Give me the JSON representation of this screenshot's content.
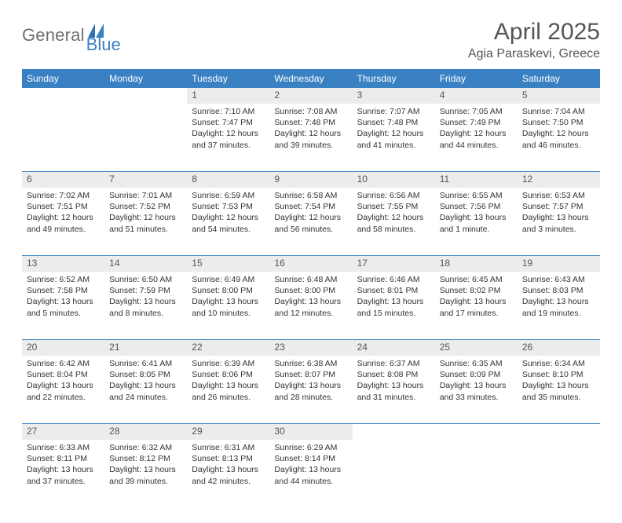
{
  "logo": {
    "text1": "General",
    "text2": "Blue"
  },
  "title": "April 2025",
  "location": "Agia Paraskevi, Greece",
  "colors": {
    "header_bg": "#3a81c4",
    "header_fg": "#ffffff",
    "daynum_bg": "#ececec",
    "rule": "#3a81c4",
    "logo_gray": "#6e6e6e",
    "logo_blue": "#3a81c4",
    "text": "#333333"
  },
  "weekdays": [
    "Sunday",
    "Monday",
    "Tuesday",
    "Wednesday",
    "Thursday",
    "Friday",
    "Saturday"
  ],
  "weeks": [
    [
      {
        "n": "",
        "empty": true
      },
      {
        "n": "",
        "empty": true
      },
      {
        "n": "1",
        "sr": "Sunrise: 7:10 AM",
        "ss": "Sunset: 7:47 PM",
        "dl": "Daylight: 12 hours and 37 minutes."
      },
      {
        "n": "2",
        "sr": "Sunrise: 7:08 AM",
        "ss": "Sunset: 7:48 PM",
        "dl": "Daylight: 12 hours and 39 minutes."
      },
      {
        "n": "3",
        "sr": "Sunrise: 7:07 AM",
        "ss": "Sunset: 7:48 PM",
        "dl": "Daylight: 12 hours and 41 minutes."
      },
      {
        "n": "4",
        "sr": "Sunrise: 7:05 AM",
        "ss": "Sunset: 7:49 PM",
        "dl": "Daylight: 12 hours and 44 minutes."
      },
      {
        "n": "5",
        "sr": "Sunrise: 7:04 AM",
        "ss": "Sunset: 7:50 PM",
        "dl": "Daylight: 12 hours and 46 minutes."
      }
    ],
    [
      {
        "n": "6",
        "sr": "Sunrise: 7:02 AM",
        "ss": "Sunset: 7:51 PM",
        "dl": "Daylight: 12 hours and 49 minutes."
      },
      {
        "n": "7",
        "sr": "Sunrise: 7:01 AM",
        "ss": "Sunset: 7:52 PM",
        "dl": "Daylight: 12 hours and 51 minutes."
      },
      {
        "n": "8",
        "sr": "Sunrise: 6:59 AM",
        "ss": "Sunset: 7:53 PM",
        "dl": "Daylight: 12 hours and 54 minutes."
      },
      {
        "n": "9",
        "sr": "Sunrise: 6:58 AM",
        "ss": "Sunset: 7:54 PM",
        "dl": "Daylight: 12 hours and 56 minutes."
      },
      {
        "n": "10",
        "sr": "Sunrise: 6:56 AM",
        "ss": "Sunset: 7:55 PM",
        "dl": "Daylight: 12 hours and 58 minutes."
      },
      {
        "n": "11",
        "sr": "Sunrise: 6:55 AM",
        "ss": "Sunset: 7:56 PM",
        "dl": "Daylight: 13 hours and 1 minute."
      },
      {
        "n": "12",
        "sr": "Sunrise: 6:53 AM",
        "ss": "Sunset: 7:57 PM",
        "dl": "Daylight: 13 hours and 3 minutes."
      }
    ],
    [
      {
        "n": "13",
        "sr": "Sunrise: 6:52 AM",
        "ss": "Sunset: 7:58 PM",
        "dl": "Daylight: 13 hours and 5 minutes."
      },
      {
        "n": "14",
        "sr": "Sunrise: 6:50 AM",
        "ss": "Sunset: 7:59 PM",
        "dl": "Daylight: 13 hours and 8 minutes."
      },
      {
        "n": "15",
        "sr": "Sunrise: 6:49 AM",
        "ss": "Sunset: 8:00 PM",
        "dl": "Daylight: 13 hours and 10 minutes."
      },
      {
        "n": "16",
        "sr": "Sunrise: 6:48 AM",
        "ss": "Sunset: 8:00 PM",
        "dl": "Daylight: 13 hours and 12 minutes."
      },
      {
        "n": "17",
        "sr": "Sunrise: 6:46 AM",
        "ss": "Sunset: 8:01 PM",
        "dl": "Daylight: 13 hours and 15 minutes."
      },
      {
        "n": "18",
        "sr": "Sunrise: 6:45 AM",
        "ss": "Sunset: 8:02 PM",
        "dl": "Daylight: 13 hours and 17 minutes."
      },
      {
        "n": "19",
        "sr": "Sunrise: 6:43 AM",
        "ss": "Sunset: 8:03 PM",
        "dl": "Daylight: 13 hours and 19 minutes."
      }
    ],
    [
      {
        "n": "20",
        "sr": "Sunrise: 6:42 AM",
        "ss": "Sunset: 8:04 PM",
        "dl": "Daylight: 13 hours and 22 minutes."
      },
      {
        "n": "21",
        "sr": "Sunrise: 6:41 AM",
        "ss": "Sunset: 8:05 PM",
        "dl": "Daylight: 13 hours and 24 minutes."
      },
      {
        "n": "22",
        "sr": "Sunrise: 6:39 AM",
        "ss": "Sunset: 8:06 PM",
        "dl": "Daylight: 13 hours and 26 minutes."
      },
      {
        "n": "23",
        "sr": "Sunrise: 6:38 AM",
        "ss": "Sunset: 8:07 PM",
        "dl": "Daylight: 13 hours and 28 minutes."
      },
      {
        "n": "24",
        "sr": "Sunrise: 6:37 AM",
        "ss": "Sunset: 8:08 PM",
        "dl": "Daylight: 13 hours and 31 minutes."
      },
      {
        "n": "25",
        "sr": "Sunrise: 6:35 AM",
        "ss": "Sunset: 8:09 PM",
        "dl": "Daylight: 13 hours and 33 minutes."
      },
      {
        "n": "26",
        "sr": "Sunrise: 6:34 AM",
        "ss": "Sunset: 8:10 PM",
        "dl": "Daylight: 13 hours and 35 minutes."
      }
    ],
    [
      {
        "n": "27",
        "sr": "Sunrise: 6:33 AM",
        "ss": "Sunset: 8:11 PM",
        "dl": "Daylight: 13 hours and 37 minutes."
      },
      {
        "n": "28",
        "sr": "Sunrise: 6:32 AM",
        "ss": "Sunset: 8:12 PM",
        "dl": "Daylight: 13 hours and 39 minutes."
      },
      {
        "n": "29",
        "sr": "Sunrise: 6:31 AM",
        "ss": "Sunset: 8:13 PM",
        "dl": "Daylight: 13 hours and 42 minutes."
      },
      {
        "n": "30",
        "sr": "Sunrise: 6:29 AM",
        "ss": "Sunset: 8:14 PM",
        "dl": "Daylight: 13 hours and 44 minutes."
      },
      {
        "n": "",
        "empty": true
      },
      {
        "n": "",
        "empty": true
      },
      {
        "n": "",
        "empty": true
      }
    ]
  ]
}
